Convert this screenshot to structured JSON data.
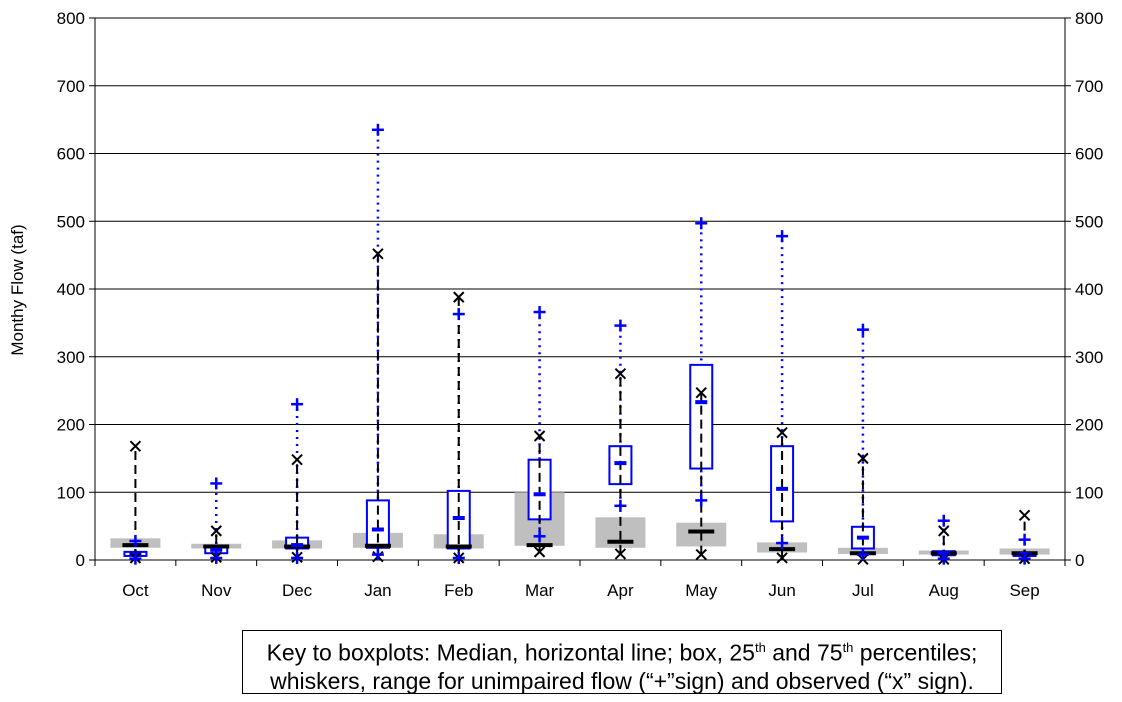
{
  "chart_data": {
    "type": "boxplot",
    "ylabel": "Monthy Flow (taf)",
    "ylim": [
      0,
      800
    ],
    "yticks": [
      0,
      100,
      200,
      300,
      400,
      500,
      600,
      700,
      800
    ],
    "secondary_y_axis": true,
    "grid": "horizontal",
    "categories": [
      "Oct",
      "Nov",
      "Dec",
      "Jan",
      "Feb",
      "Mar",
      "Apr",
      "May",
      "Jun",
      "Jul",
      "Aug",
      "Sep"
    ],
    "series": [
      {
        "key": "observed",
        "marker": "x",
        "box_color": "#bfbfbf",
        "median_color": "#000000",
        "whisker_style": "dashed",
        "min": [
          3,
          4,
          4,
          5,
          3,
          12,
          9,
          8,
          3,
          1,
          1,
          2
        ],
        "q1": [
          18,
          17,
          17,
          18,
          17,
          21,
          18,
          20,
          11,
          9,
          8,
          8
        ],
        "median": [
          22,
          20,
          20,
          21,
          20,
          22,
          27,
          42,
          16,
          10,
          10,
          10
        ],
        "q3": [
          32,
          24,
          29,
          40,
          38,
          100,
          63,
          55,
          26,
          18,
          14,
          17
        ],
        "max": [
          168,
          43,
          148,
          452,
          388,
          183,
          275,
          247,
          188,
          150,
          43,
          66
        ]
      },
      {
        "key": "unimpaired",
        "marker": "+",
        "box_color": "#0000ff",
        "median_color": "#0000ff",
        "whisker_style": "dotted",
        "min": [
          2,
          3,
          3,
          8,
          3,
          35,
          80,
          88,
          25,
          8,
          2,
          2
        ],
        "q1": [
          6,
          10,
          17,
          18,
          17,
          60,
          112,
          135,
          57,
          17,
          7,
          6
        ],
        "median": [
          8,
          15,
          22,
          45,
          62,
          97,
          143,
          233,
          105,
          33,
          10,
          9
        ],
        "q3": [
          12,
          20,
          33,
          88,
          102,
          148,
          168,
          288,
          168,
          49,
          13,
          11
        ],
        "max": [
          28,
          113,
          230,
          635,
          363,
          366,
          346,
          497,
          478,
          340,
          58,
          30
        ]
      }
    ]
  },
  "key": {
    "line1_pre": "Key to boxplots: Median, horizontal line; box, 25",
    "sup1": "th",
    "line1_mid": " and 75",
    "sup2": "th",
    "line1_post": " percentiles;",
    "line2": "whiskers, range for unimpaired flow (“+”sign) and observed (“x” sign)."
  }
}
